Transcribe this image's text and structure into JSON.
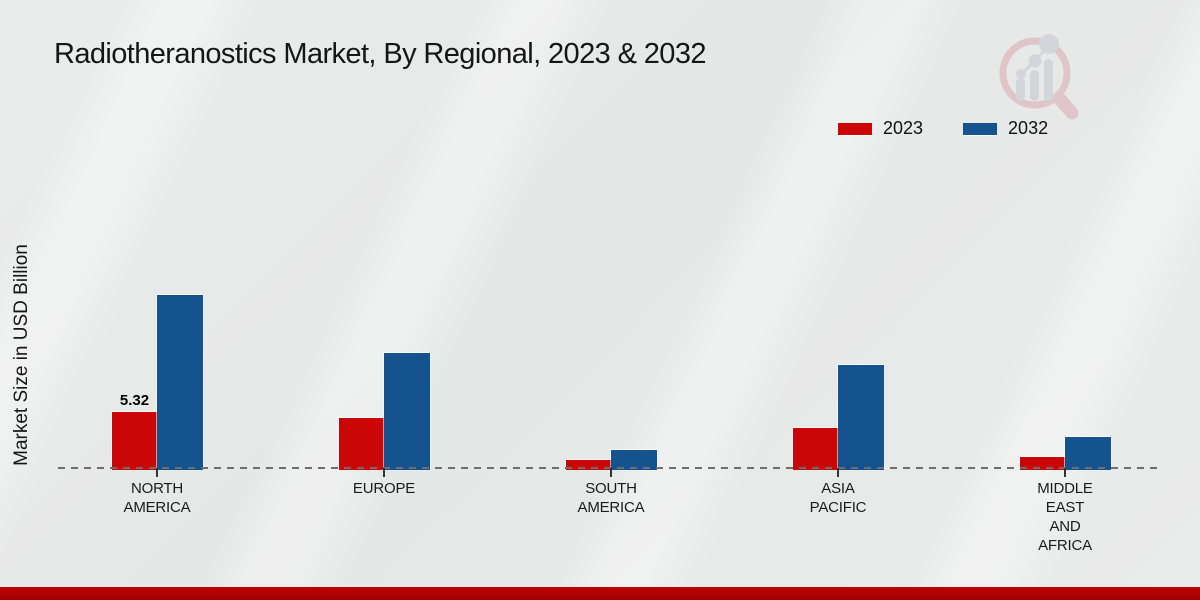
{
  "chart_data": {
    "type": "bar",
    "title": "Radiotheranostics Market, By Regional, 2023 & 2032",
    "ylabel": "Market Size in USD Billion",
    "categories": [
      [
        "NORTH",
        "AMERICA"
      ],
      [
        "EUROPE"
      ],
      [
        "SOUTH",
        "AMERICA"
      ],
      [
        "ASIA",
        "PACIFIC"
      ],
      [
        "MIDDLE",
        "EAST",
        "AND",
        "AFRICA"
      ]
    ],
    "series": [
      {
        "name": "2023",
        "color": "#cb0606",
        "values": [
          5.32,
          4.8,
          0.85,
          3.8,
          1.1
        ],
        "data_labels": [
          "5.32",
          "",
          "",
          "",
          ""
        ]
      },
      {
        "name": "2032",
        "color": "#15538f",
        "values": [
          16.2,
          10.8,
          1.8,
          9.7,
          3.0
        ],
        "data_labels": [
          "",
          "",
          "",
          "",
          ""
        ]
      }
    ],
    "ylim": [
      0,
      18
    ],
    "grid": false,
    "legend_position": "top-right",
    "baseline_style": "dashed",
    "units": "USD Billion"
  },
  "footer": {
    "accent_color": "#c00202"
  },
  "logo": {
    "name": "magnifier-bar-chart-watermark"
  }
}
